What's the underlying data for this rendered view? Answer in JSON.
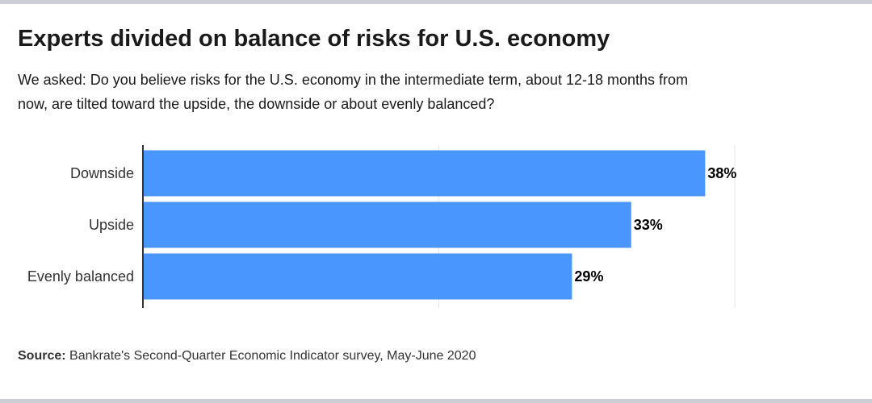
{
  "title": "Experts divided on balance of risks for U.S. economy",
  "subtitle": "We asked: Do you believe risks for the U.S. economy in the intermediate term, about 12-18 months from now, are tilted toward the upside, the downside or about evenly balanced?",
  "source_label": "Source:",
  "source_text": " Bankrate's Second-Quarter Economic Indicator survey, May-June 2020",
  "chart_data": {
    "type": "bar",
    "orientation": "horizontal",
    "categories": [
      "Downside",
      "Upside",
      "Evenly balanced"
    ],
    "values": [
      38,
      33,
      29
    ],
    "data_labels": [
      "38%",
      "33%",
      "29%"
    ],
    "unit": "%",
    "xlim": [
      0,
      40
    ],
    "gridlines": [
      20,
      40
    ],
    "grid": true,
    "bar_color": "#4896fe"
  }
}
